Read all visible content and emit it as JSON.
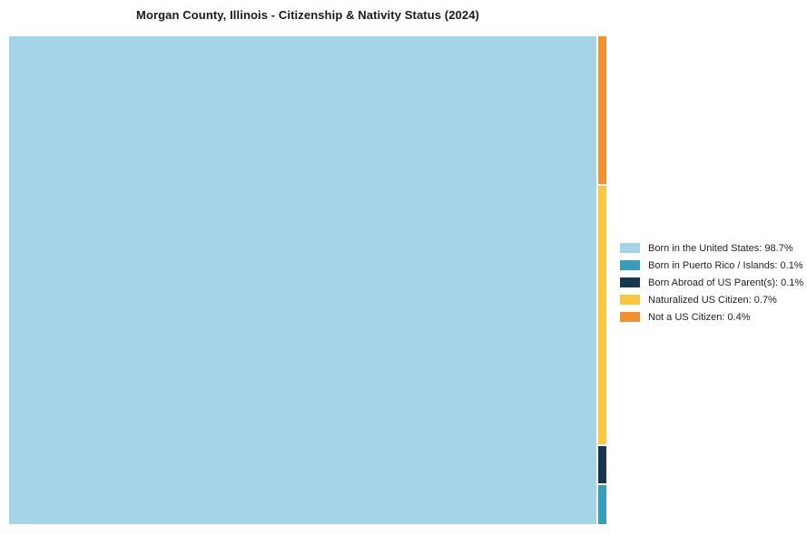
{
  "page": {
    "background": "#ffffff"
  },
  "chart_data": {
    "type": "treemap",
    "title": "Morgan County, Illinois - Citizenship & Nativity Status (2024)",
    "categories": [
      "Born in the United States",
      "Born in Puerto Rico / Islands",
      "Born Abroad of US Parent(s)",
      "Naturalized US Citizen",
      "Not a US Citizen"
    ],
    "values": [
      98.7,
      0.1,
      0.1,
      0.7,
      0.4
    ],
    "unit": "%",
    "colors": [
      "#A5D3E8",
      "#339FBA",
      "#17364F",
      "#FDC53C",
      "#F4912E"
    ],
    "legend_position": "right",
    "layout": "large-left-rect-with-right-strip",
    "grid": false
  },
  "legend": {
    "items": [
      {
        "label": "Born in the United States: 98.7%",
        "color": "#A5D3E8"
      },
      {
        "label": "Born in Puerto Rico / Islands: 0.1%",
        "color": "#339FBA"
      },
      {
        "label": "Born Abroad of US Parent(s): 0.1%",
        "color": "#17364F"
      },
      {
        "label": "Naturalized US Citizen: 0.7%",
        "color": "#FDC53C"
      },
      {
        "label": "Not a US Citizen: 0.4%",
        "color": "#F4912E"
      }
    ]
  }
}
